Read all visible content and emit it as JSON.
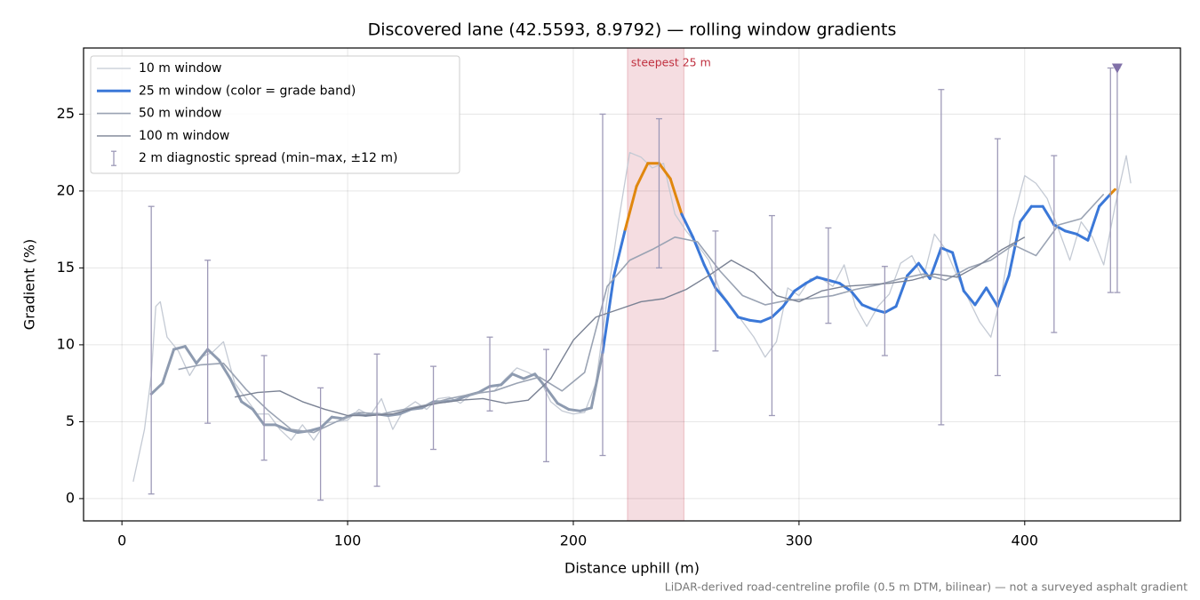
{
  "chart_data": {
    "type": "line",
    "title": "Discovered lane (42.5593, 8.9792) — rolling window gradients",
    "xlabel": "Distance uphill (m)",
    "ylabel": "Gradient (%)",
    "footnote": "LiDAR-derived road-centreline profile (0.5 m DTM, bilinear) — not a surveyed asphalt gradient",
    "xlim": [
      -17,
      469
    ],
    "ylim": [
      -1.45,
      29.3
    ],
    "xticks": [
      0,
      100,
      200,
      300,
      400
    ],
    "yticks": [
      0,
      5,
      10,
      15,
      20,
      25
    ],
    "grid": true,
    "legend": "upper left",
    "highlight": {
      "x": [
        224,
        249
      ],
      "label": "steepest 25 m",
      "color": "#e8b4bd",
      "label_color": "#c0303f"
    },
    "series": [
      {
        "name": "10 m window",
        "color": "#c4cad4",
        "x": [
          5,
          10,
          13,
          15,
          17,
          20,
          25,
          30,
          35,
          40,
          45,
          50,
          55,
          60,
          65,
          70,
          75,
          80,
          85,
          90,
          95,
          100,
          105,
          110,
          115,
          120,
          125,
          130,
          135,
          140,
          145,
          150,
          155,
          160,
          165,
          170,
          175,
          180,
          185,
          190,
          195,
          200,
          205,
          210,
          215,
          220,
          225,
          230,
          235,
          240,
          245,
          250,
          255,
          260,
          265,
          270,
          275,
          280,
          285,
          290,
          295,
          300,
          305,
          310,
          315,
          320,
          325,
          330,
          335,
          340,
          345,
          350,
          355,
          360,
          365,
          370,
          375,
          380,
          385,
          390,
          395,
          400,
          405,
          410,
          415,
          420,
          425,
          430,
          435,
          440,
          445,
          447
        ],
        "values": [
          1.1,
          4.5,
          8,
          12.5,
          12.8,
          10.5,
          9.6,
          8,
          9.2,
          9.5,
          10.2,
          7.5,
          6.5,
          5.5,
          5.5,
          4.5,
          3.8,
          4.8,
          3.8,
          4.9,
          5,
          5.1,
          5.8,
          5.4,
          6.5,
          4.5,
          5.8,
          6.3,
          5.8,
          6.5,
          6.6,
          6.2,
          6.8,
          6.9,
          7.0,
          7.8,
          8.5,
          8.2,
          7.8,
          6.3,
          5.7,
          5.5,
          5.6,
          7.5,
          13,
          18,
          22.5,
          22.2,
          21.5,
          21.8,
          18.5,
          17.4,
          16.5,
          15.5,
          13.5,
          12.5,
          11.5,
          10.5,
          9.2,
          10.2,
          13.7,
          13.2,
          14.3,
          14.3,
          13.8,
          15.2,
          12.5,
          11.2,
          12.5,
          13.3,
          15.3,
          15.8,
          14.3,
          17.2,
          16.2,
          14.5,
          13,
          11.5,
          10.5,
          13.5,
          18.2,
          21,
          20.5,
          19.5,
          17.5,
          15.5,
          18,
          17,
          15.2,
          19,
          22.3,
          20.5
        ]
      },
      {
        "name": "25 m window (color = grade band)",
        "color": "#3b78d8",
        "band_edges": [
          10,
          20
        ],
        "band_colors": [
          "#8e9bb0",
          "#3b78d8",
          "#e0870e"
        ],
        "x": [
          13,
          18,
          23,
          28,
          33,
          38,
          43,
          48,
          53,
          58,
          63,
          68,
          73,
          78,
          83,
          88,
          93,
          98,
          103,
          108,
          113,
          118,
          123,
          128,
          133,
          138,
          143,
          148,
          153,
          158,
          163,
          168,
          173,
          178,
          183,
          188,
          193,
          198,
          203,
          208,
          213,
          218,
          223,
          228,
          233,
          238,
          243,
          248,
          253,
          258,
          263,
          268,
          273,
          278,
          283,
          288,
          293,
          298,
          303,
          308,
          313,
          318,
          323,
          328,
          333,
          338,
          343,
          348,
          353,
          358,
          363,
          368,
          373,
          378,
          383,
          388,
          393,
          398,
          403,
          408,
          413,
          418,
          423,
          428,
          433,
          438,
          440
        ],
        "values": [
          6.8,
          7.5,
          9.7,
          9.9,
          8.8,
          9.7,
          9.0,
          7.8,
          6.3,
          5.8,
          4.8,
          4.8,
          4.5,
          4.3,
          4.4,
          4.6,
          5.3,
          5.2,
          5.5,
          5.4,
          5.5,
          5.4,
          5.5,
          5.8,
          5.9,
          6.3,
          6.3,
          6.4,
          6.7,
          6.9,
          7.3,
          7.4,
          8.1,
          7.8,
          8.1,
          7.2,
          6.2,
          5.8,
          5.7,
          5.9,
          9.5,
          14.5,
          17.5,
          20.3,
          21.8,
          21.8,
          20.8,
          18.5,
          17,
          15.2,
          13.7,
          12.8,
          11.8,
          11.6,
          11.5,
          11.8,
          12.5,
          13.5,
          14.0,
          14.4,
          14.2,
          14.0,
          13.5,
          12.6,
          12.3,
          12.1,
          12.5,
          14.5,
          15.3,
          14.3,
          16.3,
          16.0,
          13.5,
          12.6,
          13.7,
          12.5,
          14.5,
          18,
          19,
          19,
          17.8,
          17.4,
          17.2,
          16.8,
          19.0,
          19.8,
          20.1
        ]
      },
      {
        "name": "50 m window",
        "color": "#9aa3b3",
        "x": [
          25,
          35,
          45,
          55,
          65,
          75,
          85,
          95,
          105,
          115,
          125,
          135,
          145,
          155,
          165,
          175,
          185,
          195,
          205,
          215,
          225,
          235,
          245,
          255,
          265,
          275,
          285,
          295,
          305,
          315,
          325,
          335,
          345,
          355,
          365,
          375,
          385,
          395,
          405,
          415,
          425,
          435
        ],
        "values": [
          8.4,
          8.7,
          8.8,
          7.1,
          5.7,
          4.5,
          4.3,
          5.0,
          5.6,
          5.5,
          5.8,
          6.1,
          6.5,
          6.8,
          7.0,
          7.5,
          7.9,
          7.0,
          8.2,
          13.8,
          15.5,
          16.2,
          17,
          16.7,
          14.8,
          13.2,
          12.6,
          12.9,
          13.0,
          13.2,
          13.6,
          13.9,
          14.3,
          14.6,
          14.2,
          15,
          15.5,
          16.5,
          15.8,
          17.8,
          18.2,
          19.8
        ]
      },
      {
        "name": "100 m window",
        "color": "#7a8294",
        "x": [
          50,
          60,
          70,
          80,
          90,
          100,
          110,
          120,
          130,
          140,
          150,
          160,
          170,
          180,
          190,
          200,
          210,
          220,
          230,
          240,
          250,
          260,
          270,
          280,
          290,
          300,
          310,
          320,
          330,
          340,
          350,
          360,
          370,
          380,
          390,
          400
        ],
        "values": [
          6.6,
          6.9,
          7.0,
          6.3,
          5.8,
          5.4,
          5.4,
          5.5,
          5.9,
          6.2,
          6.4,
          6.5,
          6.2,
          6.4,
          7.8,
          10.3,
          11.8,
          12.3,
          12.8,
          13.0,
          13.6,
          14.5,
          15.5,
          14.7,
          13.2,
          12.8,
          13.5,
          13.8,
          13.9,
          14.0,
          14.2,
          14.6,
          14.4,
          15.2,
          16.2,
          17.0
        ]
      }
    ],
    "error_bars": {
      "name": "2 m diagnostic spread (min–max, ±12 m)",
      "color": "#9e9ab8",
      "x": [
        13,
        38,
        63,
        88,
        113,
        138,
        163,
        188,
        213,
        238,
        263,
        288,
        313,
        338,
        363,
        388,
        413,
        438,
        441
      ],
      "low": [
        0.3,
        4.9,
        2.5,
        -0.1,
        0.8,
        3.2,
        5.7,
        2.4,
        2.8,
        15,
        9.6,
        5.4,
        11.4,
        9.3,
        4.8,
        8,
        10.8,
        13.4,
        13.4
      ],
      "high": [
        19,
        15.5,
        9.3,
        7.2,
        9.4,
        8.6,
        10.5,
        9.7,
        25,
        24.7,
        17.4,
        18.4,
        17.6,
        15.1,
        26.6,
        23.4,
        22.3,
        28,
        28
      ]
    },
    "marker": {
      "x": 441,
      "y": 28,
      "color": "#8070a8"
    }
  }
}
